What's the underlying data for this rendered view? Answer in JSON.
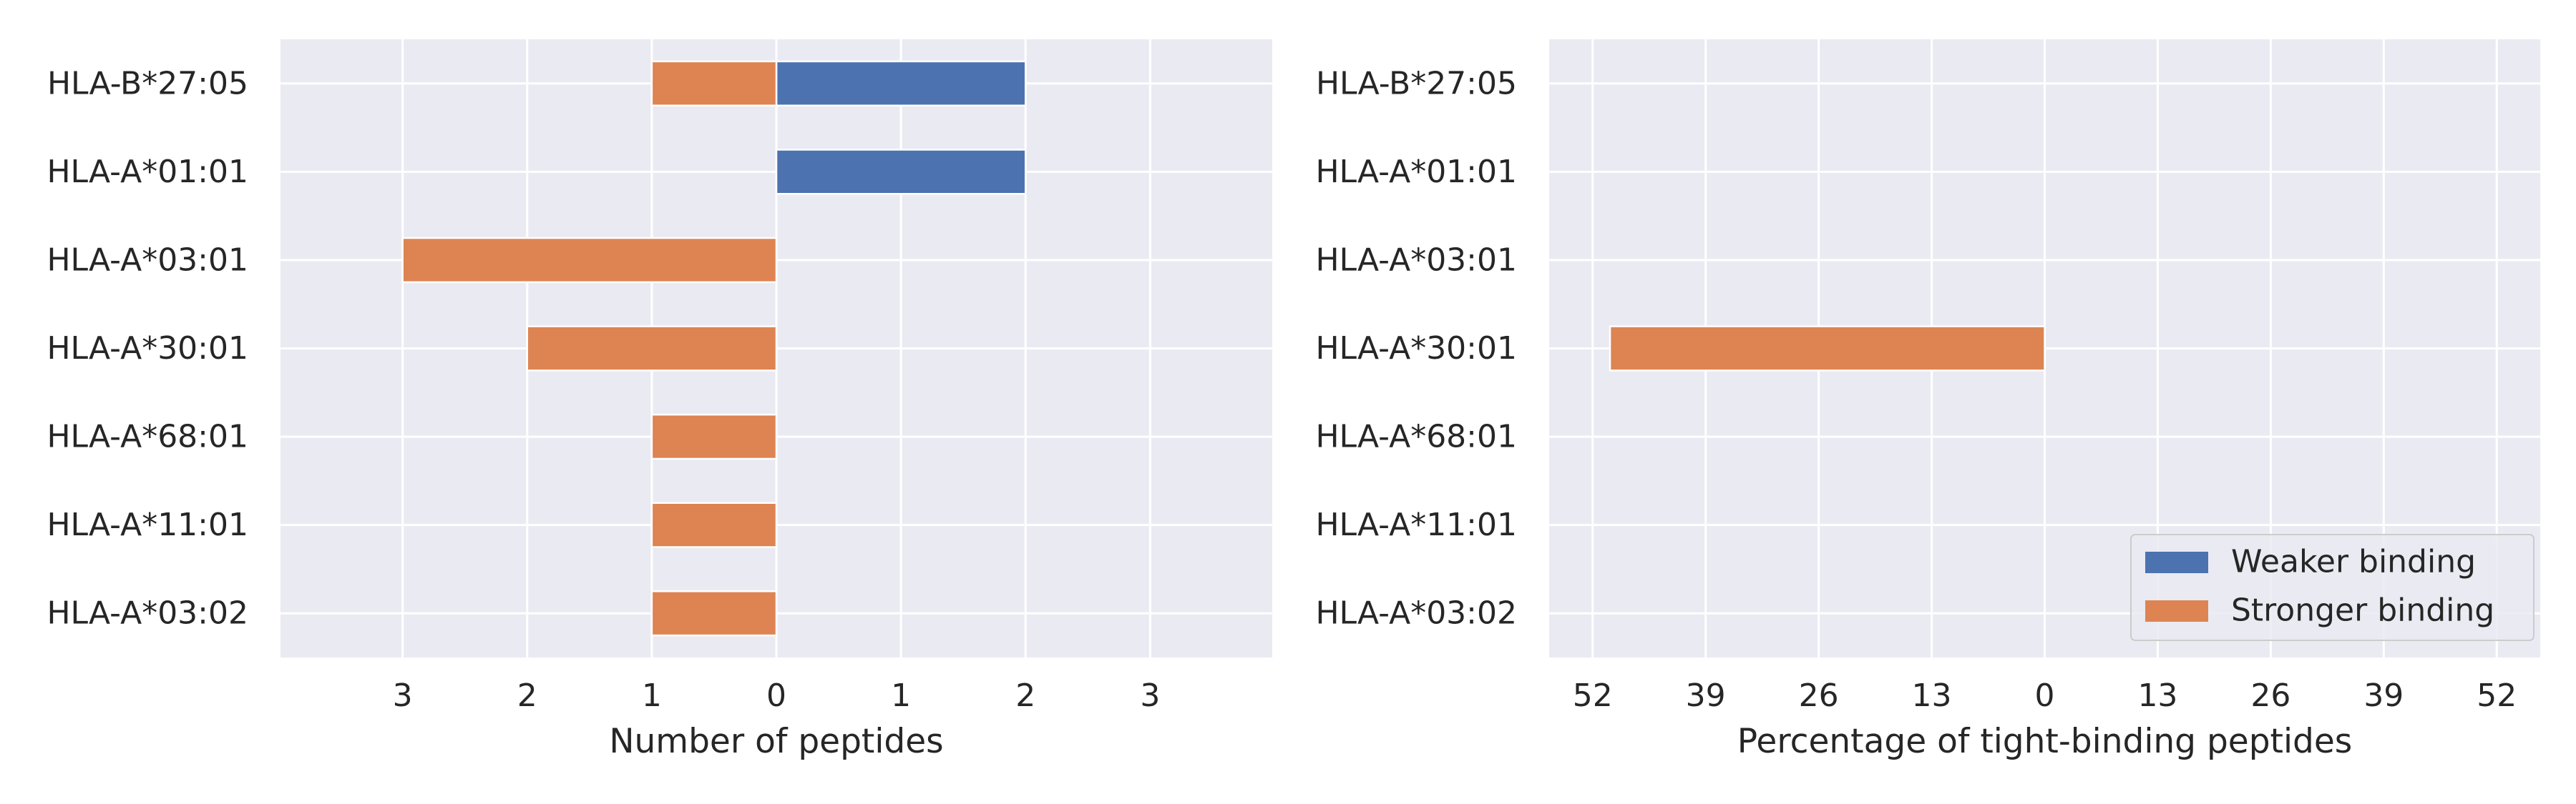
{
  "colors": {
    "panel_bg": "#EAEAF2",
    "grid": "#FFFFFF",
    "weaker": "#4C72B0",
    "stronger": "#DD8452",
    "text": "#262626"
  },
  "legend": {
    "placement": "lower-right",
    "entries": [
      {
        "label": "Weaker binding",
        "color": "#4C72B0"
      },
      {
        "label": "Stronger binding",
        "color": "#DD8452"
      }
    ]
  },
  "chart_data": [
    {
      "type": "bar",
      "orientation": "horizontal",
      "layout": "diverging",
      "title": "",
      "xlabel": "Number of peptides",
      "ylabel": "",
      "grid": true,
      "categories": [
        "HLA-B*27:05",
        "HLA-A*01:01",
        "HLA-A*03:01",
        "HLA-A*30:01",
        "HLA-A*68:01",
        "HLA-A*11:01",
        "HLA-A*03:02"
      ],
      "xlim": [
        -3.98,
        3.98
      ],
      "xticks": [
        -3,
        -2,
        -1,
        0,
        1,
        2,
        3
      ],
      "xtick_labels": [
        "3",
        "2",
        "1",
        "0",
        "1",
        "2",
        "3"
      ],
      "series": [
        {
          "name": "Weaker binding",
          "direction": "right",
          "values": [
            2,
            2,
            0,
            0,
            0,
            0,
            0
          ]
        },
        {
          "name": "Stronger binding",
          "direction": "left",
          "values": [
            1,
            0,
            3,
            2,
            1,
            1,
            1
          ]
        }
      ]
    },
    {
      "type": "bar",
      "orientation": "horizontal",
      "layout": "diverging",
      "title": "",
      "xlabel": "Percentage of tight-binding peptides",
      "ylabel": "",
      "grid": true,
      "categories": [
        "HLA-B*27:05",
        "HLA-A*01:01",
        "HLA-A*03:01",
        "HLA-A*30:01",
        "HLA-A*68:01",
        "HLA-A*11:01",
        "HLA-A*03:02"
      ],
      "xlim": [
        -57,
        57
      ],
      "xticks": [
        -52,
        -39,
        -26,
        -13,
        0,
        13,
        26,
        39,
        52
      ],
      "xtick_labels": [
        "52",
        "39",
        "26",
        "13",
        "0",
        "13",
        "26",
        "39",
        "52"
      ],
      "series": [
        {
          "name": "Weaker binding",
          "direction": "right",
          "values": [
            0,
            0,
            0,
            0,
            0,
            0,
            0
          ]
        },
        {
          "name": "Stronger binding",
          "direction": "left",
          "values": [
            0,
            0,
            0,
            50,
            0,
            0,
            0
          ]
        }
      ]
    }
  ]
}
